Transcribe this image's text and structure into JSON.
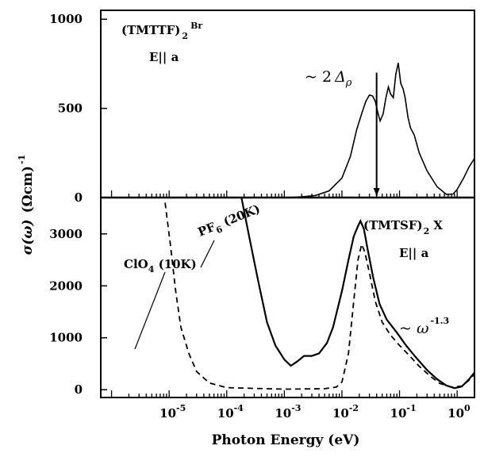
{
  "chart_data": [
    {
      "panel": "top",
      "type": "line",
      "compound_label": "(TMTTF)",
      "compound_sub": "2",
      "compound_anion": "Br",
      "polarization": "E|| a",
      "annotation_gap": "~ 2",
      "annotation_gap_symbol": "Δ",
      "annotation_gap_sub": "ρ",
      "gap_energy_ev": 0.04,
      "xscale": "log",
      "xlim": [
        6.5e-07,
        2.0
      ],
      "ylim": [
        0,
        1050
      ],
      "yticks": [
        0,
        500,
        1000
      ],
      "series": [
        {
          "name": "(TMTTF)2Br",
          "points": [
            [
              0.0011,
              0
            ],
            [
              0.002,
              4
            ],
            [
              0.0035,
              12
            ],
            [
              0.006,
              38
            ],
            [
              0.01,
              110
            ],
            [
              0.014,
              230
            ],
            [
              0.018,
              380
            ],
            [
              0.022,
              470
            ],
            [
              0.026,
              540
            ],
            [
              0.03,
              575
            ],
            [
              0.034,
              570
            ],
            [
              0.038,
              540
            ],
            [
              0.042,
              475
            ],
            [
              0.046,
              430
            ],
            [
              0.052,
              470
            ],
            [
              0.058,
              560
            ],
            [
              0.064,
              620
            ],
            [
              0.07,
              580
            ],
            [
              0.078,
              560
            ],
            [
              0.086,
              690
            ],
            [
              0.095,
              755
            ],
            [
              0.105,
              640
            ],
            [
              0.115,
              610
            ],
            [
              0.125,
              560
            ],
            [
              0.14,
              450
            ],
            [
              0.155,
              390
            ],
            [
              0.18,
              350
            ],
            [
              0.22,
              250
            ],
            [
              0.3,
              150
            ],
            [
              0.45,
              60
            ],
            [
              0.65,
              18
            ],
            [
              0.85,
              20
            ],
            [
              1.0,
              45
            ],
            [
              1.3,
              110
            ],
            [
              1.6,
              170
            ],
            [
              2.0,
              220
            ]
          ]
        }
      ]
    },
    {
      "panel": "bottom",
      "type": "line",
      "compound_label": "(TMTSF)",
      "compound_sub": "2",
      "compound_anion": "X",
      "polarization": "E|| a",
      "power_law_base": "~ ω",
      "power_law_exponent": "-1.3",
      "xscale": "log",
      "xlim": [
        6.5e-07,
        2.0
      ],
      "ylim": [
        -150,
        3700
      ],
      "yticks": [
        0,
        1000,
        2000,
        3000
      ],
      "xlabel": "Photon Energy (eV)",
      "ylabel_sigma": "σ(ω)",
      "ylabel_units": "(Ωcm)",
      "ylabel_exp": "-1",
      "xticks": [
        {
          "value": 1e-05,
          "base": "10",
          "exp": "-5"
        },
        {
          "value": 0.0001,
          "base": "10",
          "exp": "-4"
        },
        {
          "value": 0.001,
          "base": "10",
          "exp": "-3"
        },
        {
          "value": 0.01,
          "base": "10",
          "exp": "-2"
        },
        {
          "value": 0.1,
          "base": "10",
          "exp": "-1"
        },
        {
          "value": 1,
          "base": "10",
          "exp": "0"
        }
      ],
      "series": [
        {
          "name": "PF6 (20K)",
          "label": "PF",
          "label_sub": "6",
          "label_tail": " (20K)",
          "style": "solid",
          "points": [
            [
              0.00018,
              3700
            ],
            [
              0.00025,
              2900
            ],
            [
              0.00035,
              2100
            ],
            [
              0.0005,
              1300
            ],
            [
              0.0007,
              850
            ],
            [
              0.001,
              580
            ],
            [
              0.0013,
              460
            ],
            [
              0.0017,
              550
            ],
            [
              0.0022,
              650
            ],
            [
              0.003,
              650
            ],
            [
              0.004,
              700
            ],
            [
              0.0055,
              900
            ],
            [
              0.007,
              1200
            ],
            [
              0.01,
              1900
            ],
            [
              0.013,
              2500
            ],
            [
              0.016,
              2950
            ],
            [
              0.019,
              3150
            ],
            [
              0.021,
              3250
            ],
            [
              0.024,
              3100
            ],
            [
              0.028,
              2700
            ],
            [
              0.035,
              2150
            ],
            [
              0.045,
              1650
            ],
            [
              0.06,
              1350
            ],
            [
              0.09,
              1100
            ],
            [
              0.13,
              850
            ],
            [
              0.2,
              600
            ],
            [
              0.3,
              380
            ],
            [
              0.45,
              200
            ],
            [
              0.65,
              80
            ],
            [
              0.9,
              30
            ],
            [
              1.2,
              60
            ],
            [
              1.6,
              200
            ],
            [
              2.0,
              330
            ]
          ]
        },
        {
          "name": "ClO4 (10K)",
          "label": "ClO",
          "label_sub": "4",
          "label_tail": " (10K)",
          "style": "dashed",
          "points": [
            [
              8.5e-06,
              3600
            ],
            [
              1.05e-05,
              2800
            ],
            [
              1.3e-05,
              1900
            ],
            [
              1.6e-05,
              1200
            ],
            [
              2.2e-05,
              700
            ],
            [
              3e-05,
              350
            ],
            [
              5e-05,
              130
            ],
            [
              0.0001,
              40
            ],
            [
              0.001,
              10
            ],
            [
              0.005,
              20
            ],
            [
              0.008,
              50
            ],
            [
              0.01,
              150
            ],
            [
              0.013,
              700
            ],
            [
              0.016,
              1700
            ],
            [
              0.019,
              2500
            ],
            [
              0.022,
              2800
            ],
            [
              0.025,
              2650
            ],
            [
              0.03,
              2250
            ],
            [
              0.038,
              1700
            ],
            [
              0.05,
              1300
            ],
            [
              0.07,
              1050
            ],
            [
              0.1,
              850
            ],
            [
              0.15,
              650
            ],
            [
              0.22,
              450
            ],
            [
              0.35,
              250
            ],
            [
              0.5,
              120
            ],
            [
              0.8,
              50
            ],
            [
              1.2,
              70
            ],
            [
              1.6,
              180
            ],
            [
              2.0,
              300
            ]
          ]
        }
      ]
    }
  ]
}
